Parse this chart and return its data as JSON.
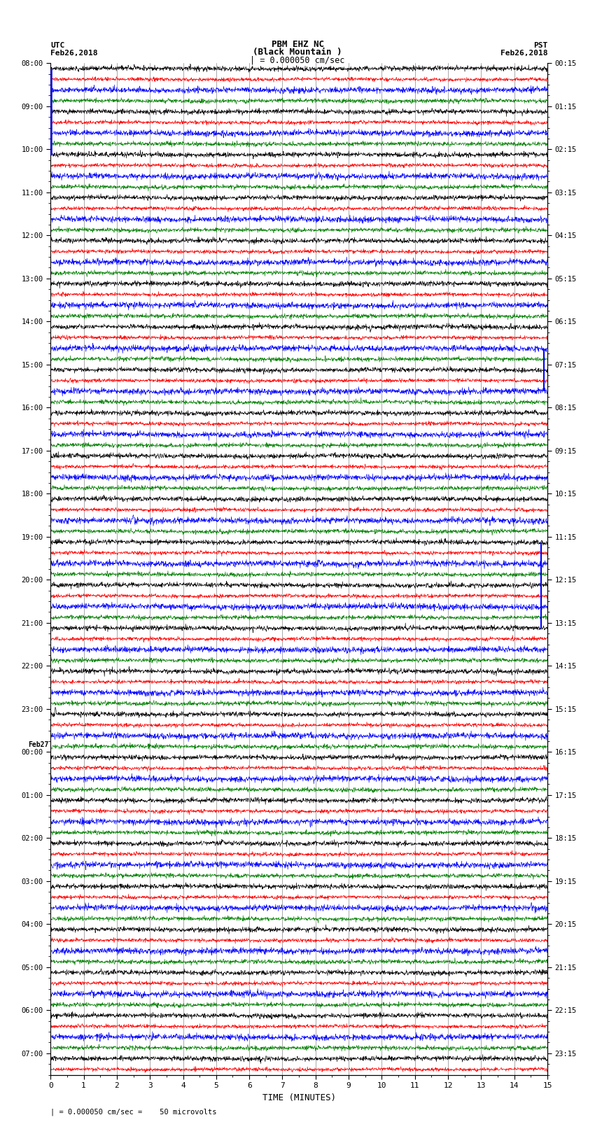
{
  "title_line1": "PBM EHZ NC",
  "title_line2": "(Black Mountain )",
  "title_line3": "| = 0.000050 cm/sec",
  "label_left_top": "UTC",
  "label_left_date": "Feb26,2018",
  "label_right_top": "PST",
  "label_right_date": "Feb26,2018",
  "feb27_label": "Feb27",
  "xlabel": "TIME (MINUTES)",
  "bottom_note": "= 0.000050 cm/sec =    50 microvolts",
  "n_rows": 94,
  "n_minutes": 15,
  "colors": [
    "black",
    "red",
    "blue",
    "green"
  ],
  "bg_color": "white",
  "fig_width": 8.5,
  "fig_height": 16.13,
  "dpi": 100,
  "noise_amplitude": 0.12,
  "samples_per_row": 1800
}
